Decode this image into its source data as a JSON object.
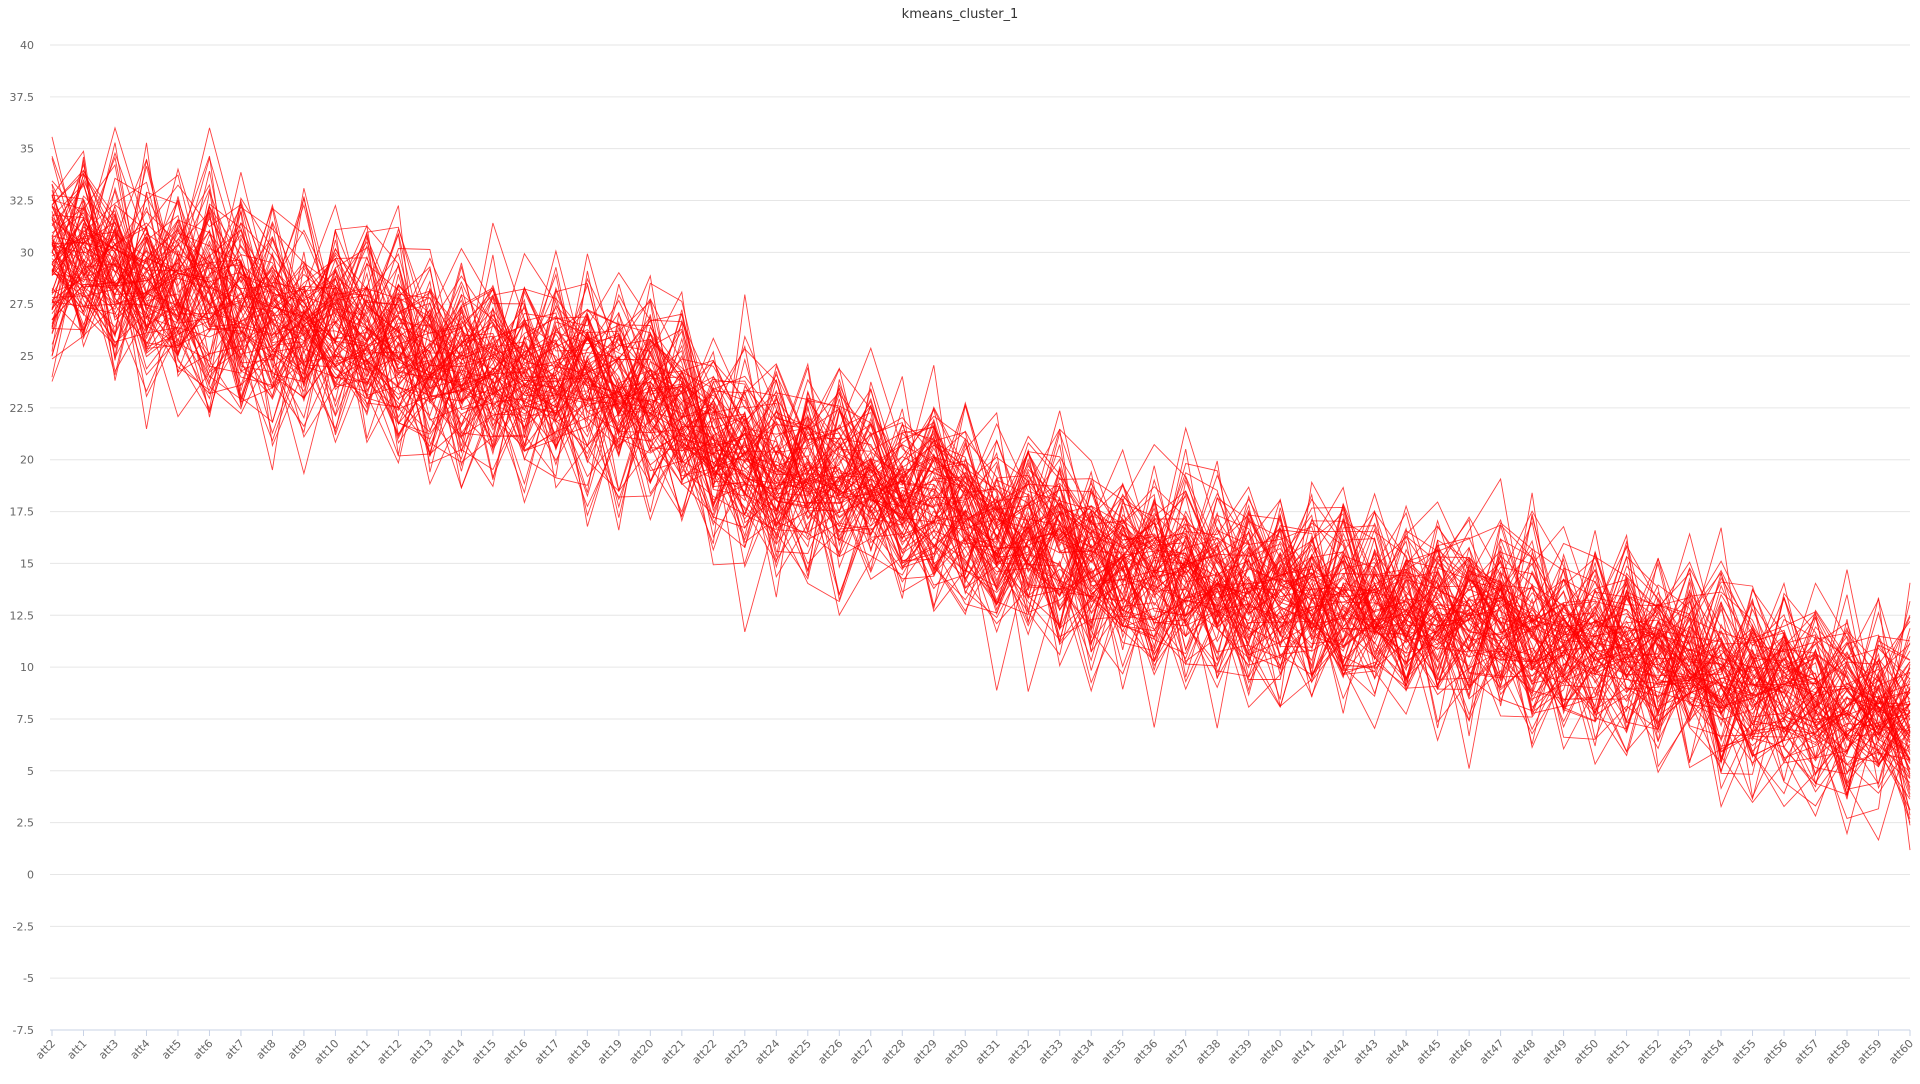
{
  "chart_data": {
    "type": "line",
    "title": "kmeans_cluster_1",
    "xlabel": "",
    "ylabel": "",
    "categories": [
      "att2",
      "att1",
      "att3",
      "att4",
      "att5",
      "att6",
      "att7",
      "att8",
      "att9",
      "att10",
      "att11",
      "att12",
      "att13",
      "att14",
      "att15",
      "att16",
      "att17",
      "att18",
      "att19",
      "att20",
      "att21",
      "att22",
      "att23",
      "att24",
      "att25",
      "att26",
      "att27",
      "att28",
      "att29",
      "att30",
      "att31",
      "att32",
      "att33",
      "att34",
      "att35",
      "att36",
      "att37",
      "att38",
      "att39",
      "att40",
      "att41",
      "att42",
      "att43",
      "att44",
      "att45",
      "att46",
      "att47",
      "att48",
      "att49",
      "att50",
      "att51",
      "att52",
      "att53",
      "att54",
      "att55",
      "att56",
      "att57",
      "att58",
      "att59",
      "att60"
    ],
    "ylim": [
      -7.5,
      40
    ],
    "yticks": [
      "-7.5",
      "-5",
      "-2.5",
      "0",
      "2.5",
      "5",
      "7.5",
      "10",
      "12.5",
      "15",
      "17.5",
      "20",
      "22.5",
      "25",
      "27.5",
      "30",
      "32.5",
      "35",
      "37.5",
      "40"
    ],
    "grid": true,
    "legend": "none",
    "series_color": "#ff0000",
    "series_count": 100,
    "mean_profile": [
      29.5,
      30.0,
      29.0,
      28.5,
      28.5,
      28.0,
      27.5,
      26.5,
      26.5,
      26.5,
      26.0,
      25.5,
      25.0,
      24.5,
      24.5,
      24.5,
      24.0,
      23.5,
      23.5,
      23.5,
      23.0,
      21.0,
      20.0,
      20.0,
      19.5,
      19.0,
      19.0,
      18.5,
      18.5,
      17.5,
      16.5,
      16.0,
      15.5,
      15.0,
      15.0,
      14.5,
      14.5,
      14.0,
      13.5,
      13.5,
      13.5,
      13.0,
      13.0,
      12.5,
      12.5,
      12.0,
      12.0,
      11.5,
      11.5,
      11.0,
      11.0,
      10.5,
      10.0,
      9.5,
      9.0,
      9.0,
      8.5,
      8.0,
      8.0,
      7.5
    ],
    "spread": 3.5
  }
}
